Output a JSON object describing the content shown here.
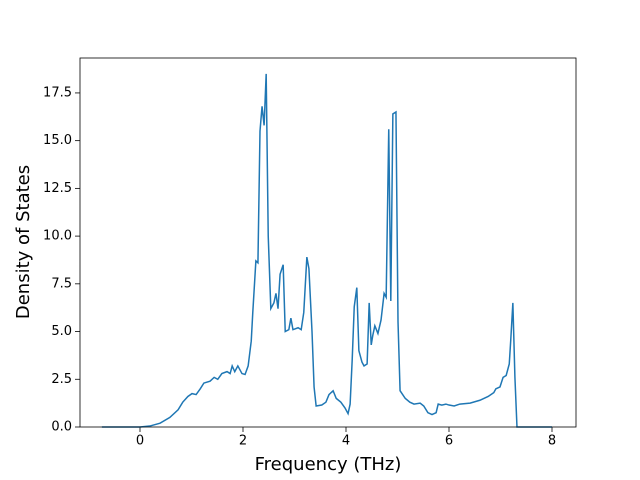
{
  "chart_data": {
    "type": "line",
    "xlabel": "Frequency (THz)",
    "ylabel": "Density of States",
    "x": [
      -0.74,
      0,
      0.19,
      0.39,
      0.58,
      0.74,
      0.83,
      0.93,
      1.01,
      1.09,
      1.17,
      1.24,
      1.36,
      1.44,
      1.51,
      1.59,
      1.69,
      1.75,
      1.79,
      1.84,
      1.9,
      1.98,
      2.04,
      2.1,
      2.16,
      2.19,
      2.25,
      2.29,
      2.33,
      2.37,
      2.41,
      2.45,
      2.49,
      2.54,
      2.6,
      2.64,
      2.68,
      2.72,
      2.78,
      2.82,
      2.89,
      2.93,
      2.97,
      3.07,
      3.13,
      3.18,
      3.24,
      3.28,
      3.34,
      3.38,
      3.42,
      3.53,
      3.61,
      3.67,
      3.75,
      3.81,
      3.9,
      3.98,
      4.04,
      4.08,
      4.12,
      4.16,
      4.21,
      4.25,
      4.31,
      4.35,
      4.41,
      4.45,
      4.49,
      4.52,
      4.56,
      4.62,
      4.68,
      4.74,
      4.78,
      4.83,
      4.87,
      4.91,
      4.97,
      5.01,
      5.05,
      5.15,
      5.24,
      5.32,
      5.44,
      5.51,
      5.59,
      5.67,
      5.75,
      5.79,
      5.86,
      5.94,
      6.0,
      6.1,
      6.21,
      6.41,
      6.6,
      6.76,
      6.87,
      6.91,
      6.99,
      7.05,
      7.11,
      7.17,
      7.2,
      7.24,
      7.28,
      7.32,
      8.0
    ],
    "series": [
      {
        "color": "#1f77b4",
        "values": [
          0,
          0,
          0.05,
          0.2,
          0.5,
          0.9,
          1.3,
          1.6,
          1.75,
          1.7,
          2.0,
          2.3,
          2.4,
          2.6,
          2.5,
          2.8,
          2.9,
          2.8,
          3.2,
          2.9,
          3.2,
          2.8,
          2.75,
          3.2,
          4.5,
          6.0,
          8.7,
          8.6,
          15.5,
          16.8,
          15.8,
          18.5,
          10.0,
          6.2,
          6.5,
          7.0,
          6.2,
          8.0,
          8.5,
          5.0,
          5.1,
          5.7,
          5.1,
          5.2,
          5.1,
          6.0,
          8.9,
          8.3,
          5.0,
          2.1,
          1.1,
          1.15,
          1.3,
          1.7,
          1.9,
          1.5,
          1.3,
          1.0,
          0.7,
          1.2,
          3.5,
          6.3,
          7.3,
          4.0,
          3.4,
          3.2,
          3.3,
          6.5,
          4.3,
          4.8,
          5.3,
          4.9,
          5.6,
          7.0,
          6.8,
          15.6,
          6.6,
          16.4,
          16.5,
          5.5,
          1.9,
          1.5,
          1.3,
          1.2,
          1.25,
          1.1,
          0.75,
          0.65,
          0.75,
          1.2,
          1.15,
          1.2,
          1.15,
          1.1,
          1.2,
          1.25,
          1.4,
          1.6,
          1.8,
          2.0,
          2.1,
          2.6,
          2.7,
          3.3,
          4.6,
          6.5,
          2.6,
          0,
          0
        ]
      }
    ],
    "xlim": [
      -1.165,
      8.466
    ],
    "ylim": [
      0,
      19.33
    ],
    "xticks": [
      0,
      2,
      4,
      6,
      8
    ],
    "yticks": [
      {
        "value": 0,
        "label": "0.0"
      },
      2.5,
      {
        "value": 5,
        "label": "5.0"
      },
      7.5,
      {
        "value": 10,
        "label": "10.0"
      },
      12.5,
      {
        "value": 15,
        "label": "15.0"
      },
      17.5
    ]
  }
}
